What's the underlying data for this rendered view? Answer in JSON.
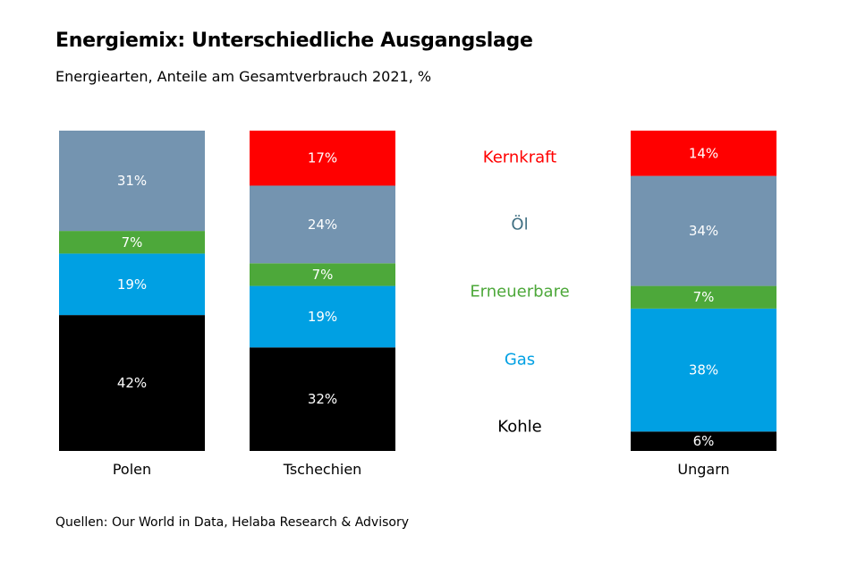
{
  "title": "Energiemix: Unterschiedliche Ausgangslage",
  "subtitle": "Energiearten, Anteile am Gesamtverbrauch 2021, %",
  "source": "Quellen: Our World in Data, Helaba Research & Advisory",
  "chart_data": {
    "type": "bar",
    "stacked": true,
    "unit": "%",
    "categories": [
      "Polen",
      "Tschechien",
      "Ungarn"
    ],
    "series": [
      {
        "name": "Kohle",
        "color": "#000000",
        "values": [
          42,
          32,
          6
        ]
      },
      {
        "name": "Gas",
        "color": "#00A0E3",
        "values": [
          19,
          19,
          38
        ]
      },
      {
        "name": "Erneuerbare",
        "color": "#4DA83A",
        "values": [
          7,
          7,
          7
        ]
      },
      {
        "name": "Öl",
        "color": "#7494B0",
        "values": [
          31,
          24,
          34
        ]
      },
      {
        "name": "Kernkraft",
        "color": "#FF0000",
        "values": [
          0,
          17,
          14
        ]
      }
    ],
    "legend": {
      "placement": "between bars",
      "order": [
        "Kernkraft",
        "Öl",
        "Erneuerbare",
        "Gas",
        "Kohle"
      ],
      "colors": {
        "Kernkraft": "#FF0000",
        "Öl": "#3F6F82",
        "Erneuerbare": "#4DA83A",
        "Gas": "#00A0E3",
        "Kohle": "#000000"
      }
    },
    "grid": false
  }
}
